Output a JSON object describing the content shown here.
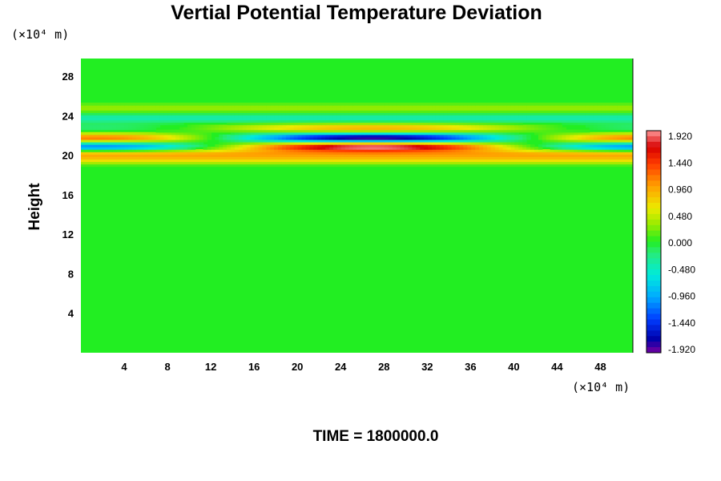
{
  "chart_data": {
    "type": "heatmap",
    "title": "Vertial Potential Temperature Deviation",
    "ylabel": "Height",
    "x_unit": "(×10⁴ m)",
    "y_unit": "(×10⁴ m)",
    "xlim": [
      0,
      51
    ],
    "ylim": [
      0,
      29.8
    ],
    "x_ticks": [
      4,
      8,
      12,
      16,
      20,
      24,
      28,
      32,
      36,
      40,
      44,
      48
    ],
    "y_ticks": [
      4,
      8,
      12,
      16,
      20,
      24,
      28
    ],
    "x_tick_labels": [
      "4",
      "8",
      "12",
      "16",
      "20",
      "24",
      "28",
      "32",
      "36",
      "40",
      "44",
      "48"
    ],
    "y_tick_labels": [
      "4",
      "8",
      "12",
      "16",
      "20",
      "24",
      "28"
    ],
    "colorbar": {
      "min": -1.92,
      "max": 1.92,
      "labels": [
        "1.920",
        "1.440",
        "0.960",
        "0.480",
        "0.000",
        "-0.480",
        "-0.960",
        "-1.440",
        "-1.920"
      ],
      "levels": [
        1.92,
        1.44,
        0.96,
        0.48,
        0.0,
        -0.48,
        -0.96,
        -1.44,
        -1.92
      ]
    },
    "background_value": 0.0,
    "bands": [
      {
        "height": 24.8,
        "amplitude": 0.3,
        "pattern": "uniform"
      },
      {
        "height": 23.8,
        "amplitude": -0.4,
        "pattern": "uniform"
      },
      {
        "height": 22.8,
        "amplitude": 0.9,
        "pattern": "center-positive-edges-negative"
      },
      {
        "height": 21.8,
        "amplitude": 1.9,
        "pattern": "edges-positive-center-negative"
      },
      {
        "height": 20.9,
        "amplitude": -1.9,
        "pattern": "edges-positive-center-negative"
      },
      {
        "height": 20.2,
        "amplitude": 0.8,
        "pattern": "uniform"
      },
      {
        "height": 19.6,
        "amplitude": 0.6,
        "pattern": "uniform"
      }
    ],
    "time_label": "TIME = 1800000.0"
  }
}
